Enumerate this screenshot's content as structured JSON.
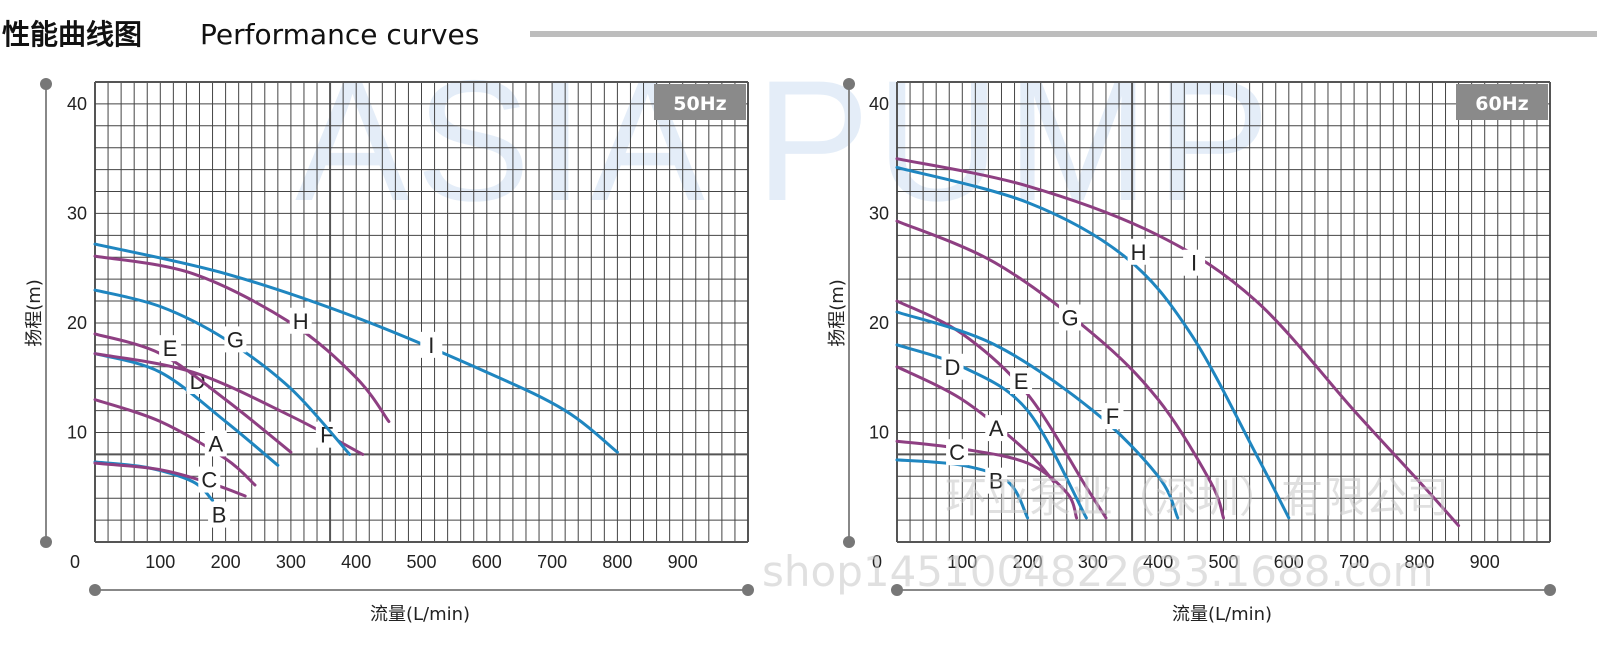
{
  "header": {
    "title_cn": "性能曲线图",
    "title_en": "Performance curves"
  },
  "watermarks": {
    "brand": "ASIA PUMP",
    "company": "环亚泵业（深圳）有限公司",
    "shop": "shop1451004822633.1688.com"
  },
  "colors": {
    "blue": "#1f86c0",
    "purple": "#8e3f82",
    "grid": "#333333",
    "badge": "#8a8a8a"
  },
  "chart_data": [
    {
      "type": "line",
      "badge": "50Hz",
      "xlabel": "流量(L/min)",
      "ylabel": "扬程(m)",
      "x_origin_label": "0",
      "xticks": [
        100,
        200,
        300,
        400,
        500,
        600,
        700,
        800,
        900
      ],
      "yticks": [
        10,
        20,
        30,
        40
      ],
      "xlim": [
        0,
        1000
      ],
      "ylim": [
        0,
        42
      ],
      "series": [
        {
          "name": "A",
          "color": "purple",
          "label_at": [
            185,
            9
          ],
          "points": [
            [
              0,
              13
            ],
            [
              100,
              11
            ],
            [
              200,
              7.6
            ],
            [
              245,
              5.2
            ]
          ]
        },
        {
          "name": "B",
          "color": "blue",
          "label_at": [
            190,
            2.5
          ],
          "points": [
            [
              0,
              7.3
            ],
            [
              80,
              6.8
            ],
            [
              150,
              5.5
            ],
            [
              180,
              3.8
            ]
          ]
        },
        {
          "name": "C",
          "color": "purple",
          "label_at": [
            175,
            5.7
          ],
          "points": [
            [
              0,
              7.2
            ],
            [
              100,
              6.6
            ],
            [
              180,
              5.3
            ],
            [
              230,
              4.2
            ]
          ]
        },
        {
          "name": "D",
          "color": "blue",
          "label_at": [
            157,
            14.7
          ],
          "points": [
            [
              0,
              17.2
            ],
            [
              100,
              15.5
            ],
            [
              200,
              11
            ],
            [
              280,
              7
            ]
          ]
        },
        {
          "name": "E",
          "color": "purple",
          "label_at": [
            115,
            17.7
          ],
          "points": [
            [
              0,
              19
            ],
            [
              100,
              17.2
            ],
            [
              200,
              13
            ],
            [
              300,
              8.2
            ]
          ]
        },
        {
          "name": "F",
          "color": "purple",
          "label_at": [
            355,
            9.8
          ],
          "points": [
            [
              0,
              17.2
            ],
            [
              150,
              15.5
            ],
            [
              300,
              11.5
            ],
            [
              410,
              8
            ]
          ]
        },
        {
          "name": "G",
          "color": "blue",
          "label_at": [
            215,
            18.5
          ],
          "points": [
            [
              0,
              23
            ],
            [
              100,
              21.5
            ],
            [
              200,
              18.5
            ],
            [
              300,
              14
            ],
            [
              390,
              8
            ]
          ]
        },
        {
          "name": "H",
          "color": "purple",
          "label_at": [
            315,
            20.2
          ],
          "points": [
            [
              0,
              26.1
            ],
            [
              150,
              24.5
            ],
            [
              300,
              20
            ],
            [
              400,
              15
            ],
            [
              450,
              11
            ]
          ]
        },
        {
          "name": "I",
          "color": "blue",
          "label_at": [
            515,
            18
          ],
          "points": [
            [
              0,
              27.2
            ],
            [
              200,
              24.5
            ],
            [
              400,
              20.5
            ],
            [
              600,
              15.5
            ],
            [
              720,
              12
            ],
            [
              800,
              8.2
            ]
          ]
        }
      ]
    },
    {
      "type": "line",
      "badge": "60Hz",
      "xlabel": "流量(L/min)",
      "ylabel": "扬程(m)",
      "x_origin_label": "0",
      "xticks": [
        100,
        200,
        300,
        400,
        500,
        600,
        700,
        800,
        900
      ],
      "yticks": [
        10,
        20,
        30,
        40
      ],
      "xlim": [
        0,
        1000
      ],
      "ylim": [
        0,
        42
      ],
      "series": [
        {
          "name": "A",
          "color": "purple",
          "label_at": [
            152,
            10.4
          ],
          "points": [
            [
              0,
              16
            ],
            [
              100,
              13
            ],
            [
              200,
              8.2
            ],
            [
              240,
              5.5
            ]
          ]
        },
        {
          "name": "B",
          "color": "blue",
          "label_at": [
            152,
            5.6
          ],
          "points": [
            [
              0,
              7.5
            ],
            [
              100,
              7
            ],
            [
              170,
              5.5
            ],
            [
              200,
              2.2
            ]
          ]
        },
        {
          "name": "C",
          "color": "purple",
          "label_at": [
            92,
            8.2
          ],
          "points": [
            [
              0,
              9.2
            ],
            [
              100,
              8.5
            ],
            [
              200,
              7.2
            ],
            [
              260,
              4.5
            ],
            [
              275,
              2.2
            ]
          ]
        },
        {
          "name": "D",
          "color": "blue",
          "label_at": [
            85,
            16
          ],
          "points": [
            [
              0,
              18
            ],
            [
              100,
              16
            ],
            [
              200,
              12
            ],
            [
              290,
              2.2
            ]
          ]
        },
        {
          "name": "E",
          "color": "purple",
          "label_at": [
            190,
            14.7
          ],
          "points": [
            [
              0,
              22
            ],
            [
              100,
              19
            ],
            [
              200,
              13.5
            ],
            [
              290,
              5
            ],
            [
              320,
              2.2
            ]
          ]
        },
        {
          "name": "F",
          "color": "blue",
          "label_at": [
            330,
            11.5
          ],
          "points": [
            [
              0,
              21
            ],
            [
              150,
              18
            ],
            [
              300,
              12
            ],
            [
              400,
              6
            ],
            [
              430,
              2.2
            ]
          ]
        },
        {
          "name": "G",
          "color": "purple",
          "label_at": [
            265,
            20.5
          ],
          "points": [
            [
              0,
              29.3
            ],
            [
              150,
              25.5
            ],
            [
              300,
              19
            ],
            [
              400,
              13
            ],
            [
              480,
              5.5
            ],
            [
              500,
              2.2
            ]
          ]
        },
        {
          "name": "H",
          "color": "blue",
          "label_at": [
            370,
            26.5
          ],
          "points": [
            [
              0,
              34.2
            ],
            [
              200,
              31
            ],
            [
              350,
              26
            ],
            [
              450,
              19
            ],
            [
              550,
              8
            ],
            [
              600,
              2.2
            ]
          ]
        },
        {
          "name": "I",
          "color": "purple",
          "label_at": [
            455,
            25.5
          ],
          "points": [
            [
              0,
              35
            ],
            [
              200,
              32.5
            ],
            [
              400,
              28
            ],
            [
              550,
              22
            ],
            [
              700,
              12
            ],
            [
              800,
              5.5
            ],
            [
              860,
              1.5
            ]
          ]
        }
      ]
    }
  ]
}
